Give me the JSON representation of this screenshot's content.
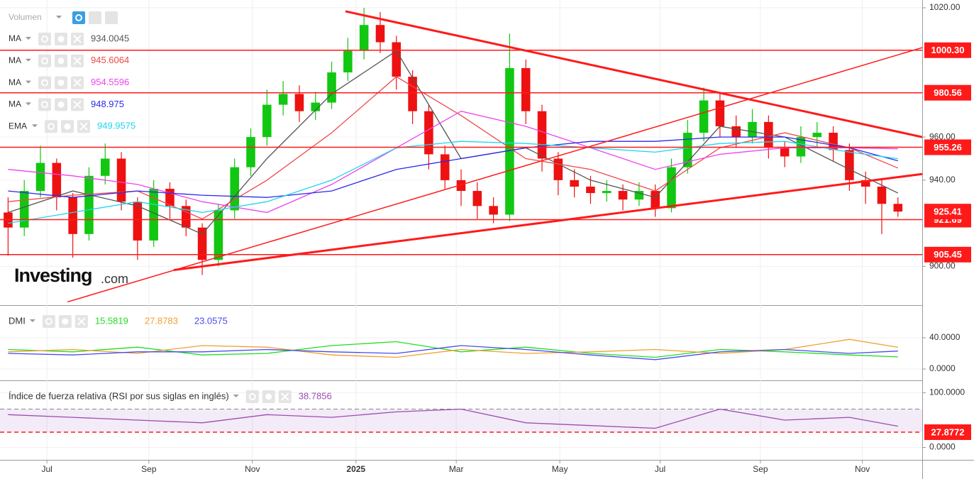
{
  "chart_data": [
    {
      "type": "candlestick",
      "legend_title": "Volumen",
      "logo": "Investing",
      "logo_suffix": ".com",
      "x": [
        0,
        1,
        2,
        3,
        4,
        5,
        6,
        7,
        8,
        9,
        10,
        11,
        12,
        13,
        14,
        15,
        16,
        17,
        18,
        19,
        20,
        21,
        22,
        23,
        24,
        25,
        26,
        27,
        28,
        29,
        30,
        31,
        32,
        33,
        34,
        35,
        36,
        37,
        38,
        39,
        40,
        41,
        42,
        43,
        44,
        45,
        46,
        47,
        48,
        49,
        50,
        51,
        52,
        53,
        54,
        55
      ],
      "open": [
        925,
        918,
        935,
        948,
        932,
        915,
        942,
        950,
        930,
        912,
        936,
        928,
        918,
        903,
        926,
        946,
        960,
        975,
        980,
        972,
        976,
        990,
        1000,
        1012,
        1004,
        988,
        972,
        952,
        940,
        935,
        928,
        924,
        992,
        972,
        950,
        940,
        937,
        934,
        935,
        931,
        935,
        927,
        946,
        962,
        977,
        965,
        960,
        967,
        955,
        951,
        960,
        962,
        954,
        940,
        937,
        929
      ],
      "high": [
        932,
        940,
        956,
        950,
        934,
        946,
        957,
        953,
        932,
        940,
        939,
        931,
        920,
        929,
        950,
        964,
        982,
        986,
        984,
        981,
        995,
        1006,
        1020,
        1018,
        1007,
        991,
        975,
        956,
        945,
        939,
        932,
        1008,
        996,
        975,
        953,
        945,
        942,
        940,
        938,
        939,
        938,
        950,
        968,
        983,
        980,
        970,
        973,
        970,
        958,
        965,
        967,
        965,
        957,
        944,
        941,
        932
      ],
      "low": [
        905,
        914,
        932,
        926,
        904,
        912,
        938,
        926,
        903,
        909,
        922,
        914,
        896,
        900,
        922,
        942,
        956,
        970,
        967,
        968,
        973,
        986,
        996,
        999,
        982,
        966,
        945,
        936,
        928,
        922,
        920,
        921,
        966,
        944,
        933,
        932,
        929,
        930,
        926,
        928,
        923,
        925,
        943,
        958,
        960,
        955,
        957,
        950,
        946,
        948,
        955,
        949,
        935,
        929,
        915,
        923
      ],
      "close": [
        918,
        935,
        948,
        932,
        915,
        942,
        950,
        930,
        912,
        936,
        928,
        918,
        903,
        926,
        946,
        960,
        975,
        980,
        972,
        976,
        990,
        1000,
        1012,
        1004,
        988,
        972,
        952,
        940,
        935,
        928,
        924,
        992,
        972,
        950,
        940,
        937,
        934,
        935,
        931,
        935,
        927,
        946,
        962,
        977,
        965,
        960,
        967,
        955,
        951,
        960,
        962,
        954,
        940,
        937,
        929,
        925.41
      ],
      "up_color": "#11c711",
      "down_color": "#ee1111",
      "xlim": [
        -0.5,
        56.5
      ],
      "xticks": [
        {
          "value": 2.4,
          "label": "Jul"
        },
        {
          "value": 8.7,
          "label": "Sep"
        },
        {
          "value": 15.1,
          "label": "Nov"
        },
        {
          "value": 21.5,
          "label": "2025"
        },
        {
          "value": 27.7,
          "label": "Mar"
        },
        {
          "value": 34.1,
          "label": "May"
        },
        {
          "value": 40.3,
          "label": "Jul"
        },
        {
          "value": 46.5,
          "label": "Sep"
        },
        {
          "value": 52.8,
          "label": "Nov"
        }
      ],
      "ylim": [
        882,
        1023.6
      ],
      "yticks": [
        {
          "value": 900,
          "label": "900.00"
        },
        {
          "value": 940,
          "label": "940.00"
        },
        {
          "value": 960,
          "label": "960.00"
        },
        {
          "value": 1020,
          "label": "1020.00"
        }
      ],
      "grid": true,
      "series": [
        {
          "name": "MA",
          "color": "#555555",
          "x": [
            0,
            4,
            8,
            12,
            16,
            20,
            24,
            28,
            32,
            36,
            40,
            44,
            48,
            52,
            55
          ],
          "values": [
            925,
            935,
            928,
            915,
            950,
            980,
            1000,
            950,
            955,
            940,
            932,
            965,
            960,
            945,
            934.0045
          ]
        },
        {
          "name": "MA",
          "color": "#f04848",
          "x": [
            0,
            4,
            8,
            12,
            16,
            20,
            24,
            28,
            32,
            36,
            40,
            44,
            48,
            52,
            55
          ],
          "values": [
            930,
            933,
            935,
            922,
            940,
            962,
            988,
            970,
            950,
            945,
            935,
            955,
            962,
            955,
            945.6064
          ]
        },
        {
          "name": "MA",
          "color": "#ee44ee",
          "x": [
            0,
            4,
            8,
            12,
            16,
            20,
            24,
            28,
            32,
            36,
            40,
            44,
            48,
            52,
            55
          ],
          "values": [
            945,
            942,
            938,
            930,
            925,
            938,
            955,
            972,
            965,
            955,
            945,
            952,
            955,
            955,
            954.5596
          ]
        },
        {
          "name": "MA",
          "color": "#2a2aee",
          "x": [
            0,
            4,
            8,
            12,
            16,
            20,
            24,
            28,
            32,
            36,
            40,
            44,
            48,
            52,
            55
          ],
          "values": [
            935,
            932,
            935,
            933,
            932,
            935,
            945,
            950,
            955,
            958,
            958,
            960,
            960,
            955,
            948.975
          ]
        },
        {
          "name": "EMA",
          "color": "#22d4ee",
          "x": [
            0,
            4,
            8,
            12,
            16,
            20,
            24,
            28,
            32,
            36,
            40,
            44,
            48,
            52,
            55
          ],
          "values": [
            920,
            925,
            930,
            925,
            930,
            940,
            955,
            958,
            957,
            955,
            953,
            957,
            958,
            953,
            949.9575
          ]
        }
      ],
      "level_color": "#ff1a1a",
      "levels": [
        {
          "value": 1000.3,
          "label": "1000.30"
        },
        980.56,
        955.26,
        921.69,
        905.45
      ],
      "trendlines": [
        {
          "x": [
            20.85,
            56.5
          ],
          "y": [
            1018.35,
            960
          ],
          "width": 3
        },
        {
          "x": [
            3.67,
            56.5
          ],
          "y": [
            883.5,
            1001.5
          ],
          "width": 1.5
        },
        {
          "x": [
            10.24,
            56.5
          ],
          "y": [
            898.3,
            942.85
          ],
          "width": 3
        }
      ]
    },
    {
      "type": "line",
      "title": "DMI",
      "ylim": [
        -13.6,
        80.9
      ],
      "yticks": [
        {
          "value": 0,
          "label": "0.0000"
        },
        {
          "value": 40,
          "label": "40.0000"
        }
      ],
      "series": [
        {
          "color": "#22dd22",
          "x": [
            0,
            4,
            8,
            12,
            16,
            20,
            24,
            28,
            32,
            36,
            40,
            44,
            48,
            52,
            55
          ],
          "values": [
            25,
            22,
            28,
            18,
            20,
            30,
            35,
            22,
            28,
            20,
            15,
            25,
            22,
            18,
            15.5819
          ]
        },
        {
          "color": "#f0a030",
          "x": [
            0,
            4,
            8,
            12,
            16,
            20,
            24,
            28,
            32,
            36,
            40,
            44,
            48,
            52,
            55
          ],
          "values": [
            22,
            25,
            20,
            30,
            28,
            18,
            15,
            25,
            20,
            22,
            25,
            20,
            25,
            38,
            27.8783
          ]
        },
        {
          "color": "#4a4af0",
          "x": [
            0,
            4,
            8,
            12,
            16,
            20,
            24,
            28,
            32,
            36,
            40,
            44,
            48,
            52,
            55
          ],
          "values": [
            20,
            18,
            22,
            22,
            25,
            22,
            20,
            30,
            25,
            18,
            12,
            22,
            25,
            20,
            23.0575
          ]
        }
      ]
    },
    {
      "type": "line",
      "title": "Índice de fuerza relativa (RSI por sus siglas en inglés)",
      "ylim": [
        -22.7,
        121.3
      ],
      "yticks": [
        {
          "value": 0,
          "label": "0.0000"
        },
        {
          "value": 100,
          "label": "100.0000"
        }
      ],
      "band": [
        27.8772,
        70
      ],
      "band_color": "#ff1a1a",
      "series": [
        {
          "color": "#9b4db0",
          "x": [
            0,
            4,
            8,
            12,
            16,
            20,
            24,
            28,
            32,
            36,
            40,
            44,
            48,
            52,
            55
          ],
          "values": [
            60,
            55,
            50,
            45,
            60,
            55,
            65,
            70,
            45,
            40,
            35,
            70,
            50,
            55,
            38.7856
          ]
        }
      ]
    }
  ]
}
